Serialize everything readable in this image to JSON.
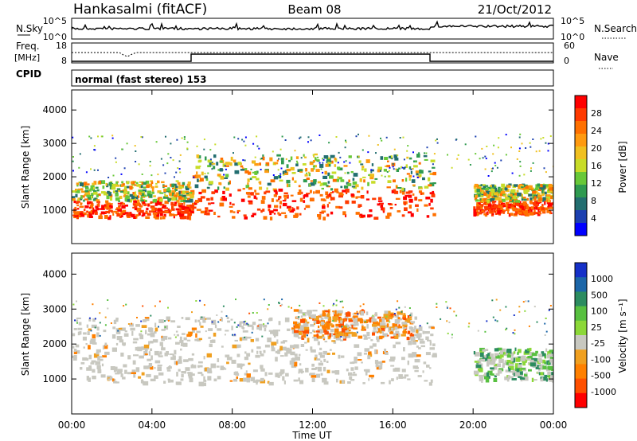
{
  "header": {
    "station": "Hankasalmi (fitACF)",
    "beam": "Beam 08",
    "date": "21/Oct/2012"
  },
  "panels": {
    "nsky_label": "N.Sky",
    "nsky_ticks": [
      "10^5",
      "10^0"
    ],
    "nsearch_label": "N.Search",
    "nsearch_ticks": [
      "10^5",
      "10^0"
    ],
    "freq_label": "Freq.",
    "freq_unit": "[MHz]",
    "freq_ticks": [
      "18",
      "8"
    ],
    "nave_label": "Nave",
    "nave_ticks": [
      "60",
      "0"
    ],
    "cpid_label": "CPID",
    "cpid_text": "normal (fast stereo) 153"
  },
  "colorbars": {
    "power_label": "Power [dB]",
    "power_ticks": [
      "28",
      "24",
      "20",
      "16",
      "12",
      "8",
      "4"
    ],
    "power_colors": [
      "#ff0000",
      "#ff3a00",
      "#ff7000",
      "#ff9a10",
      "#f0c020",
      "#c8dc28",
      "#68c838",
      "#2f9a50",
      "#236e70",
      "#1c40b0",
      "#0000ff"
    ],
    "velocity_label": "Velocity [m s⁻¹]",
    "velocity_ticks": [
      "1000",
      "500",
      "100",
      "25",
      "-25",
      "-100",
      "-500",
      "-1000"
    ],
    "velocity_colors": [
      "#1530c8",
      "#1c66a8",
      "#2c8c60",
      "#58c040",
      "#8cd838",
      "#c8c8c0",
      "#f0a020",
      "#ff8000",
      "#ff5000",
      "#ff0000"
    ]
  },
  "chart_data": [
    {
      "type": "heatmap",
      "quantity": "power",
      "ylabel": "Slant Range [km]",
      "ylim": [
        0,
        4600
      ],
      "yticks": [
        "4000",
        "3000",
        "2000",
        "1000"
      ],
      "xlim": [
        0,
        24
      ],
      "colorbar_range_dB": [
        0,
        32
      ],
      "bands": [
        {
          "t": [
            0,
            6
          ],
          "range_km": [
            800,
            1900
          ],
          "power_dB": 28
        },
        {
          "t": [
            6,
            18
          ],
          "range_km": [
            800,
            2700
          ],
          "power_dB": 24
        },
        {
          "t": [
            20,
            24
          ],
          "range_km": [
            900,
            1800
          ],
          "power_dB": 30
        }
      ]
    },
    {
      "type": "heatmap",
      "quantity": "velocity",
      "ylabel": "Slant Range [km]",
      "ylim": [
        0,
        4600
      ],
      "yticks": [
        "4000",
        "3000",
        "2000",
        "1000"
      ],
      "xlim": [
        0,
        24
      ],
      "xlabel": "Time UT",
      "xticks": [
        "00:00",
        "04:00",
        "08:00",
        "12:00",
        "16:00",
        "20:00",
        "00:00"
      ],
      "colorbar_range_ms": [
        -1000,
        1000
      ],
      "bands": [
        {
          "t": [
            0,
            18
          ],
          "range_km": [
            900,
            2800
          ],
          "velocity_ms": 0
        },
        {
          "t": [
            11,
            17
          ],
          "range_km": [
            2200,
            3000
          ],
          "velocity_ms": -300
        },
        {
          "t": [
            20,
            24
          ],
          "range_km": [
            1000,
            1900
          ],
          "velocity_ms": 150
        }
      ]
    }
  ]
}
